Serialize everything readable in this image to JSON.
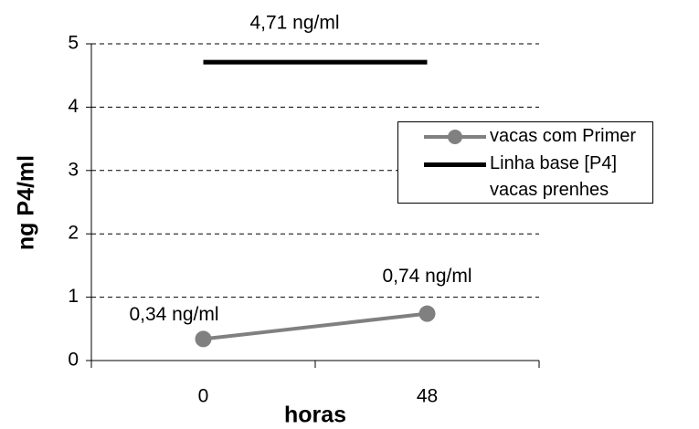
{
  "chart_data": {
    "type": "line",
    "categories": [
      "0",
      "48"
    ],
    "series": [
      {
        "name": "vacas com Primer",
        "color": "#808080",
        "values": [
          0.34,
          0.74
        ],
        "value_labels": [
          "0,34 ng/ml",
          "0,74 ng/ml"
        ]
      },
      {
        "name": "Linha base [P4] vacas prenhes",
        "color": "#000000",
        "values": [
          4.71,
          4.71
        ],
        "value_labels": [
          "4,71 ng/ml",
          null
        ]
      }
    ],
    "xlabel": "horas",
    "ylabel": "ng P4/ml",
    "ylim": [
      0,
      5
    ],
    "yticks": [
      0,
      1,
      2,
      3,
      4,
      5
    ],
    "grid": true,
    "legend": "right"
  }
}
